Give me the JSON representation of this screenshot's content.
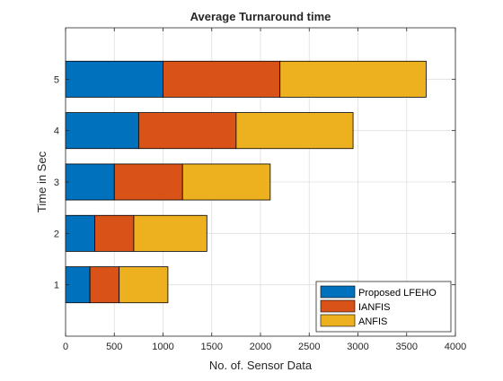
{
  "chart_data": {
    "type": "bar",
    "orientation": "horizontal",
    "stacked": true,
    "title": "Average Turnaround time",
    "xlabel": "No. of. Sensor Data",
    "ylabel": "Time in Sec",
    "categories": [
      "1",
      "2",
      "3",
      "4",
      "5"
    ],
    "xlim": [
      0,
      4000
    ],
    "ylim": [
      0,
      6
    ],
    "xticks": [
      "0",
      "500",
      "1000",
      "1500",
      "2000",
      "2500",
      "3000",
      "3500",
      "4000"
    ],
    "yticks": [
      "1",
      "2",
      "3",
      "4",
      "5"
    ],
    "grid": true,
    "legend_position": "bottom-right",
    "series": [
      {
        "name": "Proposed LFEHO",
        "color": "#0072BD",
        "values": [
          250,
          300,
          500,
          750,
          1000
        ]
      },
      {
        "name": "IANFIS",
        "color": "#D95319",
        "values": [
          300,
          400,
          700,
          1000,
          1200
        ]
      },
      {
        "name": "ANFIS",
        "color": "#EDB120",
        "values": [
          500,
          750,
          900,
          1200,
          1500
        ]
      }
    ]
  }
}
